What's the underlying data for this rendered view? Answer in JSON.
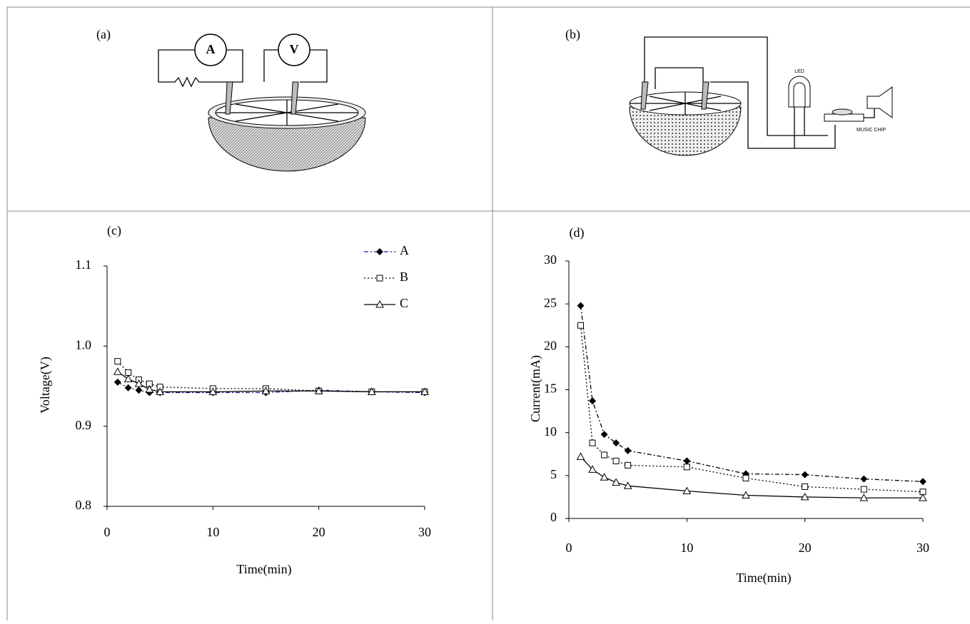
{
  "panels": {
    "a": {
      "label": "(a)",
      "ammeter": "A",
      "voltmeter": "V"
    },
    "b": {
      "label": "(b)",
      "led": "LED",
      "chip": "MUSIC CHIP"
    }
  },
  "chart_data": [
    {
      "type": "line",
      "title": "(c)",
      "x_label": "Time(min)",
      "y_label": "Voltage(V)",
      "x": [
        1,
        2,
        3,
        4,
        5,
        10,
        15,
        20,
        25,
        30
      ],
      "series": [
        {
          "name": "A",
          "color": "#000000",
          "line_color": "#1a1a8c",
          "marker": "diamond",
          "dash": "6 3 2 3",
          "values": [
            0.955,
            0.948,
            0.945,
            0.942,
            0.942,
            0.942,
            0.942,
            0.945,
            0.943,
            0.942
          ]
        },
        {
          "name": "B",
          "color": "#000000",
          "line_color": "#000000",
          "marker": "square",
          "dash": "2 3",
          "values": [
            0.981,
            0.967,
            0.958,
            0.953,
            0.949,
            0.947,
            0.947,
            0.944,
            0.943,
            0.943
          ]
        },
        {
          "name": "C",
          "color": "#000000",
          "line_color": "#000000",
          "marker": "triangle",
          "dash": "none",
          "values": [
            0.968,
            0.959,
            0.953,
            0.946,
            0.943,
            0.943,
            0.944,
            0.944,
            0.943,
            0.943
          ]
        }
      ],
      "xlim": [
        0,
        30
      ],
      "xticks": [
        0,
        10,
        20,
        30
      ],
      "ylim": [
        0.8,
        1.1
      ],
      "yticks": [
        0.8,
        0.9,
        {
          "value": 1,
          "label": "1.0"
        },
        1.1
      ],
      "legend": "top-right"
    },
    {
      "type": "line",
      "title": "(d)",
      "x_label": "Time(min)",
      "y_label": "Current(mA)",
      "x": [
        1,
        2,
        3,
        4,
        5,
        10,
        15,
        20,
        25,
        30
      ],
      "series": [
        {
          "color": "#000000",
          "line_color": "#000000",
          "marker": "diamond",
          "dash": "6 3 2 3",
          "values": [
            24.8,
            13.7,
            9.8,
            8.8,
            7.9,
            6.7,
            5.2,
            5.1,
            4.6,
            4.3
          ]
        },
        {
          "color": "#000000",
          "line_color": "#000000",
          "marker": "square",
          "dash": "2 3",
          "values": [
            22.5,
            8.8,
            7.4,
            6.7,
            6.2,
            6.0,
            4.7,
            3.7,
            3.4,
            3.1
          ]
        },
        {
          "color": "#000000",
          "line_color": "#000000",
          "marker": "triangle",
          "dash": "none",
          "values": [
            7.2,
            5.7,
            4.8,
            4.2,
            3.8,
            3.2,
            2.7,
            2.5,
            2.4,
            2.4
          ]
        }
      ],
      "xlim": [
        0,
        30
      ],
      "xticks": [
        0,
        10,
        20,
        30
      ],
      "ylim": [
        0,
        30
      ],
      "yticks": [
        0,
        5,
        10,
        15,
        20,
        25,
        30
      ]
    }
  ]
}
